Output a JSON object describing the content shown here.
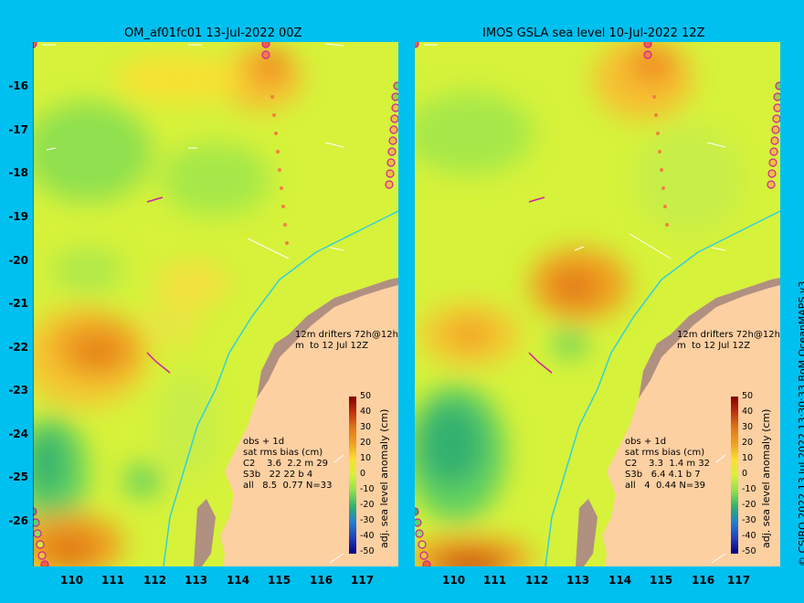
{
  "panels": [
    {
      "title": "OM_af01fc01 13-Jul-2022 00Z",
      "drifter_legend": [
        "12m drifters 72h@12h",
        "m  to 12 Jul 12Z"
      ],
      "stats": [
        "obs + 1d",
        "sat rms bias (cm)",
        "C2    3.6  2.2 m 29",
        "S3b   22 22 b 4",
        "all   8.5  0.77 N=33"
      ]
    },
    {
      "title": "IMOS GSLA sea level  10-Jul-2022 12Z",
      "drifter_legend": [
        "12m drifters 72h@12h",
        "m  to 12 Jul 12Z"
      ],
      "stats": [
        "obs + 1d",
        "sat rms bias (cm)",
        "C2    3.3  1.4 m 32",
        "S3b   6.4 4.1 b 7",
        "all   4  0.44 N=39"
      ]
    }
  ],
  "lat_ticks": [
    "-16",
    "-17",
    "-18",
    "-19",
    "-20",
    "-21",
    "-22",
    "-23",
    "-24",
    "-25",
    "-26"
  ],
  "lon_ticks": [
    "110",
    "111",
    "112",
    "113",
    "114",
    "115",
    "116",
    "117"
  ],
  "colorbar": {
    "title": "adj. sea level anomaly (cm)",
    "ticks": [
      "50",
      "40",
      "30",
      "20",
      "10",
      "0",
      "-10",
      "-20",
      "-30",
      "-40",
      "-50"
    ]
  },
  "credit": "© CSIRO 2022  13 Jul 2022 13:30:33 BoM OceanMAPS v3",
  "colors": {
    "background": "#00c0f0",
    "land": "#fdd0a2",
    "coast": "#b09080"
  }
}
